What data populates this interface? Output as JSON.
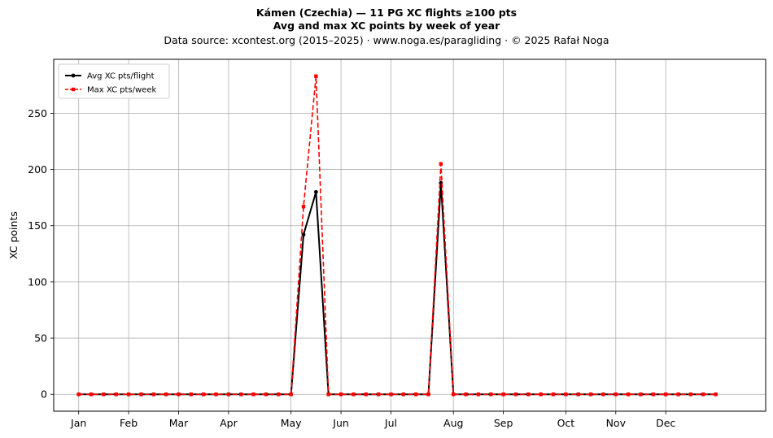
{
  "header": {
    "title_line1": "Kámen (Czechia)  —  11 PG XC flights ≥100 pts",
    "title_line2": "Avg and max XC points by week of year",
    "subtitle": "Data source: xcontest.org (2015–2025)  ·  www.noga.es/paragliding  ·  © 2025 Rafał Noga"
  },
  "chart_data": {
    "type": "line",
    "ylabel": "XC points",
    "xlabel": "",
    "xlim": [
      -2,
      55
    ],
    "ylim": [
      -15,
      298
    ],
    "grid": true,
    "legend_placement": "top-left",
    "x_ticks": [
      {
        "label": "Jan",
        "week": 0
      },
      {
        "label": "Feb",
        "week": 4
      },
      {
        "label": "Mar",
        "week": 8
      },
      {
        "label": "Apr",
        "week": 12
      },
      {
        "label": "May",
        "week": 17
      },
      {
        "label": "Jun",
        "week": 21
      },
      {
        "label": "Jul",
        "week": 25
      },
      {
        "label": "Aug",
        "week": 30
      },
      {
        "label": "Sep",
        "week": 34
      },
      {
        "label": "Oct",
        "week": 39
      },
      {
        "label": "Nov",
        "week": 43
      },
      {
        "label": "Dec",
        "week": 47
      }
    ],
    "y_ticks": [
      0,
      50,
      100,
      150,
      200,
      250
    ],
    "x": [
      0,
      1,
      2,
      3,
      4,
      5,
      6,
      7,
      8,
      9,
      10,
      11,
      12,
      13,
      14,
      15,
      16,
      17,
      18,
      19,
      20,
      21,
      22,
      23,
      24,
      25,
      26,
      27,
      28,
      29,
      30,
      31,
      32,
      33,
      34,
      35,
      36,
      37,
      38,
      39,
      40,
      41,
      42,
      43,
      44,
      45,
      46,
      47,
      48,
      49,
      50,
      51
    ],
    "series": [
      {
        "name": "Avg XC pts/flight",
        "color": "#000000",
        "style": "solid",
        "marker": "circle",
        "values": [
          0,
          0,
          0,
          0,
          0,
          0,
          0,
          0,
          0,
          0,
          0,
          0,
          0,
          0,
          0,
          0,
          0,
          0,
          142,
          180,
          0,
          0,
          0,
          0,
          0,
          0,
          0,
          0,
          0,
          188,
          0,
          0,
          0,
          0,
          0,
          0,
          0,
          0,
          0,
          0,
          0,
          0,
          0,
          0,
          0,
          0,
          0,
          0,
          0,
          0,
          0,
          0
        ]
      },
      {
        "name": "Max XC pts/week",
        "color": "#ff0000",
        "style": "dashed",
        "marker": "square",
        "values": [
          0,
          0,
          0,
          0,
          0,
          0,
          0,
          0,
          0,
          0,
          0,
          0,
          0,
          0,
          0,
          0,
          0,
          0,
          167,
          283,
          0,
          0,
          0,
          0,
          0,
          0,
          0,
          0,
          0,
          205,
          0,
          0,
          0,
          0,
          0,
          0,
          0,
          0,
          0,
          0,
          0,
          0,
          0,
          0,
          0,
          0,
          0,
          0,
          0,
          0,
          0,
          0
        ]
      }
    ]
  }
}
